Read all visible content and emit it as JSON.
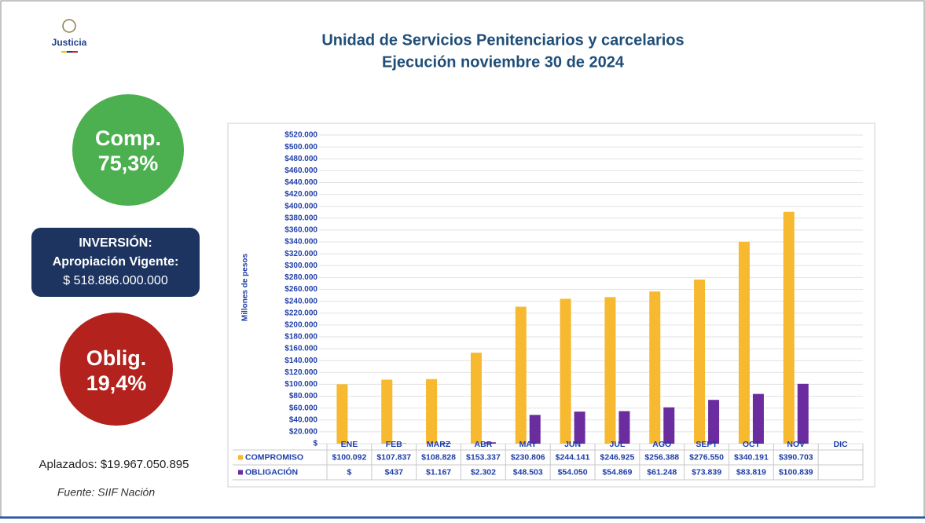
{
  "brand": "Justicia",
  "left": {
    "comp_label": "Comp.",
    "comp_value": "75,3%",
    "inv_title": "INVERSIÓN:",
    "inv_subtitle": "Apropiación Vigente:",
    "inv_amount": "$ 518.886.000.000",
    "oblig_label": "Oblig.",
    "oblig_value": "19,4%",
    "aplazados": "Aplazados: $19.967.050.895",
    "source": "Fuente: SIIF Nación"
  },
  "chart_data": {
    "type": "bar",
    "title": "Unidad de Servicios Penitenciarios y carcelarios",
    "subtitle": "Ejecución noviembre 30 de 2024",
    "y_label": "Millones de pesos",
    "categories": [
      "ENE",
      "FEB",
      "MARZ",
      "ABR",
      "MAY",
      "JUN",
      "JUL",
      "AGO",
      "SEPT",
      "OCT",
      "NOV",
      "DIC"
    ],
    "series": [
      {
        "name": "COMPROMISO",
        "color": "#f6b92f",
        "values": [
          100092,
          107837,
          108828,
          153337,
          230806,
          244141,
          246925,
          256388,
          276550,
          340191,
          390703,
          null
        ],
        "value_labels": [
          "$100.092",
          "$107.837",
          "$108.828",
          "$153.337",
          "$230.806",
          "$244.141",
          "$246.925",
          "$256.388",
          "$276.550",
          "$340.191",
          "$390.703",
          null
        ]
      },
      {
        "name": "OBLIGACIÓN",
        "color": "#6a2c9f",
        "values": [
          0,
          437,
          1167,
          2302,
          48503,
          54050,
          54869,
          61248,
          73839,
          83819,
          100839,
          null
        ],
        "value_labels": [
          "$",
          "$437",
          "$1.167",
          "$2.302",
          "$48.503",
          "$54.050",
          "$54.869",
          "$61.248",
          "$73.839",
          "$83.819",
          "$100.839",
          null
        ]
      }
    ],
    "ylim": [
      0,
      520000
    ],
    "yticks": [
      {
        "value": 0,
        "label": "$"
      },
      {
        "value": 20000,
        "label": "$20.000"
      },
      {
        "value": 40000,
        "label": "$40.000"
      },
      {
        "value": 60000,
        "label": "$60.000"
      },
      {
        "value": 80000,
        "label": "$80.000"
      },
      {
        "value": 100000,
        "label": "$100.000"
      },
      {
        "value": 120000,
        "label": "$120.000"
      },
      {
        "value": 140000,
        "label": "$140.000"
      },
      {
        "value": 160000,
        "label": "$160.000"
      },
      {
        "value": 180000,
        "label": "$180.000"
      },
      {
        "value": 200000,
        "label": "$200.000"
      },
      {
        "value": 220000,
        "label": "$220.000"
      },
      {
        "value": 240000,
        "label": "$240.000"
      },
      {
        "value": 260000,
        "label": "$260.000"
      },
      {
        "value": 280000,
        "label": "$280.000"
      },
      {
        "value": 300000,
        "label": "$300.000"
      },
      {
        "value": 320000,
        "label": "$320.000"
      },
      {
        "value": 340000,
        "label": "$340.000"
      },
      {
        "value": 360000,
        "label": "$360.000"
      },
      {
        "value": 380000,
        "label": "$380.000"
      },
      {
        "value": 400000,
        "label": "$400.000"
      },
      {
        "value": 420000,
        "label": "$420.000"
      },
      {
        "value": 440000,
        "label": "$440.000"
      },
      {
        "value": 460000,
        "label": "$460.000"
      },
      {
        "value": 480000,
        "label": "$480.000"
      },
      {
        "value": 500000,
        "label": "$500.000"
      },
      {
        "value": 520000,
        "label": "$520.000"
      }
    ],
    "grid": true
  }
}
